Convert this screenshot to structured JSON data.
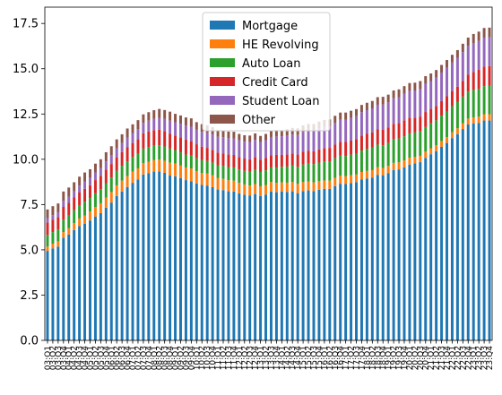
{
  "chart_data": {
    "type": "bar",
    "stacked": true,
    "title": "",
    "xlabel": "",
    "ylabel": "",
    "ylim": [
      0,
      18.4
    ],
    "yticks": [
      0.0,
      2.5,
      5.0,
      7.5,
      10.0,
      12.5,
      15.0,
      17.5
    ],
    "ytick_labels": [
      "0.0",
      "2.5",
      "5.0",
      "7.5",
      "10.0",
      "12.5",
      "15.0",
      "17.5"
    ],
    "legend_position": "upper center",
    "grid": false,
    "categories": [
      "03:Q1",
      "03:Q2",
      "03:Q3",
      "03:Q4",
      "04:Q1",
      "04:Q2",
      "04:Q3",
      "04:Q4",
      "05:Q1",
      "05:Q2",
      "05:Q3",
      "05:Q4",
      "06:Q1",
      "06:Q2",
      "06:Q3",
      "06:Q4",
      "07:Q1",
      "07:Q2",
      "07:Q3",
      "07:Q4",
      "08:Q1",
      "08:Q2",
      "08:Q3",
      "08:Q4",
      "09:Q1",
      "09:Q2",
      "09:Q3",
      "09:Q4",
      "10:Q1",
      "10:Q2",
      "10:Q3",
      "10:Q4",
      "11:Q1",
      "11:Q2",
      "11:Q3",
      "11:Q4",
      "12:Q1",
      "12:Q2",
      "12:Q3",
      "12:Q4",
      "13:Q1",
      "13:Q2",
      "13:Q3",
      "13:Q4",
      "14:Q1",
      "14:Q2",
      "14:Q3",
      "14:Q4",
      "15:Q1",
      "15:Q2",
      "15:Q3",
      "15:Q4",
      "16:Q1",
      "16:Q2",
      "16:Q3",
      "16:Q4",
      "17:Q1",
      "17:Q2",
      "17:Q3",
      "17:Q4",
      "18:Q1",
      "18:Q2",
      "18:Q3",
      "18:Q4",
      "19:Q1",
      "19:Q2",
      "19:Q3",
      "19:Q4",
      "20:Q1",
      "20:Q2",
      "20:Q3",
      "20:Q4",
      "21:Q1",
      "21:Q2",
      "21:Q3",
      "21:Q4",
      "22:Q1",
      "22:Q2",
      "22:Q3",
      "22:Q4",
      "23:Q1",
      "23:Q2",
      "23:Q3",
      "23:Q4"
    ],
    "series": [
      {
        "name": "Mortgage",
        "color": "#1f77b4",
        "values": [
          4.94,
          5.08,
          5.18,
          5.66,
          5.84,
          6.09,
          6.31,
          6.43,
          6.62,
          6.84,
          7.03,
          7.33,
          7.61,
          7.97,
          8.22,
          8.47,
          8.7,
          8.89,
          9.16,
          9.24,
          9.32,
          9.33,
          9.25,
          9.1,
          9.06,
          8.96,
          8.85,
          8.79,
          8.67,
          8.58,
          8.55,
          8.46,
          8.33,
          8.3,
          8.23,
          8.22,
          8.12,
          8.04,
          7.99,
          8.08,
          7.97,
          8.05,
          8.21,
          8.18,
          8.21,
          8.2,
          8.23,
          8.13,
          8.24,
          8.28,
          8.24,
          8.32,
          8.37,
          8.37,
          8.52,
          8.65,
          8.63,
          8.69,
          8.74,
          8.88,
          8.94,
          8.98,
          9.14,
          9.12,
          9.24,
          9.41,
          9.44,
          9.56,
          9.71,
          9.78,
          9.84,
          10.08,
          10.28,
          10.45,
          10.69,
          10.9,
          11.17,
          11.39,
          11.67,
          11.92,
          11.97,
          12.01,
          12.14,
          12.14
        ]
      },
      {
        "name": "HE Revolving",
        "color": "#ff7f0e",
        "values": [
          0.24,
          0.26,
          0.29,
          0.32,
          0.35,
          0.38,
          0.42,
          0.46,
          0.49,
          0.52,
          0.54,
          0.56,
          0.58,
          0.59,
          0.6,
          0.6,
          0.61,
          0.61,
          0.62,
          0.63,
          0.63,
          0.65,
          0.67,
          0.71,
          0.71,
          0.71,
          0.7,
          0.7,
          0.68,
          0.67,
          0.66,
          0.65,
          0.63,
          0.62,
          0.61,
          0.6,
          0.58,
          0.57,
          0.56,
          0.55,
          0.54,
          0.53,
          0.53,
          0.52,
          0.51,
          0.51,
          0.51,
          0.51,
          0.5,
          0.49,
          0.48,
          0.47,
          0.46,
          0.45,
          0.45,
          0.45,
          0.43,
          0.43,
          0.42,
          0.42,
          0.42,
          0.42,
          0.42,
          0.4,
          0.39,
          0.39,
          0.39,
          0.38,
          0.38,
          0.36,
          0.35,
          0.34,
          0.33,
          0.32,
          0.32,
          0.32,
          0.32,
          0.32,
          0.32,
          0.33,
          0.34,
          0.34,
          0.35,
          0.35
        ]
      },
      {
        "name": "Auto Loan",
        "color": "#2ca02c",
        "values": [
          0.64,
          0.64,
          0.65,
          0.68,
          0.7,
          0.72,
          0.74,
          0.76,
          0.75,
          0.76,
          0.78,
          0.79,
          0.8,
          0.81,
          0.82,
          0.82,
          0.81,
          0.81,
          0.81,
          0.81,
          0.8,
          0.79,
          0.79,
          0.78,
          0.74,
          0.72,
          0.71,
          0.71,
          0.7,
          0.7,
          0.7,
          0.71,
          0.71,
          0.72,
          0.73,
          0.73,
          0.74,
          0.75,
          0.77,
          0.78,
          0.79,
          0.81,
          0.81,
          0.84,
          0.86,
          0.89,
          0.91,
          0.94,
          0.97,
          0.99,
          1.01,
          1.03,
          1.06,
          1.07,
          1.09,
          1.11,
          1.12,
          1.14,
          1.15,
          1.18,
          1.22,
          1.24,
          1.25,
          1.25,
          1.27,
          1.31,
          1.32,
          1.33,
          1.34,
          1.34,
          1.35,
          1.36,
          1.37,
          1.38,
          1.4,
          1.42,
          1.44,
          1.45,
          1.47,
          1.49,
          1.52,
          1.53,
          1.55,
          1.58
        ]
      },
      {
        "name": "Credit Card",
        "color": "#d62728",
        "values": [
          0.69,
          0.69,
          0.69,
          0.71,
          0.7,
          0.7,
          0.71,
          0.72,
          0.71,
          0.73,
          0.73,
          0.75,
          0.75,
          0.74,
          0.76,
          0.77,
          0.78,
          0.8,
          0.84,
          0.85,
          0.86,
          0.87,
          0.85,
          0.83,
          0.8,
          0.81,
          0.83,
          0.8,
          0.78,
          0.75,
          0.72,
          0.7,
          0.69,
          0.69,
          0.7,
          0.69,
          0.68,
          0.68,
          0.68,
          0.7,
          0.67,
          0.68,
          0.68,
          0.7,
          0.66,
          0.67,
          0.67,
          0.68,
          0.7,
          0.7,
          0.71,
          0.73,
          0.73,
          0.74,
          0.75,
          0.75,
          0.78,
          0.77,
          0.8,
          0.83,
          0.82,
          0.84,
          0.84,
          0.87,
          0.85,
          0.85,
          0.85,
          0.88,
          0.87,
          0.82,
          0.82,
          0.83,
          0.8,
          0.79,
          0.8,
          0.84,
          0.84,
          0.85,
          0.87,
          0.93,
          0.99,
          1.06,
          1.08,
          1.08
        ]
      },
      {
        "name": "Student Loan",
        "color": "#9467bd",
        "values": [
          0.24,
          0.25,
          0.26,
          0.33,
          0.34,
          0.35,
          0.37,
          0.39,
          0.4,
          0.42,
          0.43,
          0.45,
          0.48,
          0.49,
          0.5,
          0.54,
          0.55,
          0.56,
          0.58,
          0.6,
          0.62,
          0.65,
          0.67,
          0.71,
          0.73,
          0.76,
          0.77,
          0.8,
          0.8,
          0.81,
          0.84,
          0.86,
          0.88,
          0.89,
          0.89,
          0.91,
          0.92,
          0.93,
          0.95,
          0.96,
          0.97,
          0.98,
          1.0,
          1.02,
          1.03,
          1.04,
          1.05,
          1.08,
          1.1,
          1.12,
          1.13,
          1.15,
          1.17,
          1.18,
          1.19,
          1.22,
          1.23,
          1.25,
          1.27,
          1.29,
          1.31,
          1.33,
          1.36,
          1.38,
          1.39,
          1.41,
          1.43,
          1.46,
          1.48,
          1.5,
          1.52,
          1.55,
          1.54,
          1.57,
          1.58,
          1.57,
          1.57,
          1.58,
          1.59,
          1.59,
          1.6,
          1.6,
          1.6,
          1.58
        ]
      },
      {
        "name": "Other",
        "color": "#8c564b",
        "values": [
          0.48,
          0.49,
          0.49,
          0.52,
          0.51,
          0.49,
          0.49,
          0.51,
          0.48,
          0.49,
          0.49,
          0.51,
          0.5,
          0.5,
          0.48,
          0.5,
          0.48,
          0.49,
          0.47,
          0.47,
          0.48,
          0.49,
          0.49,
          0.5,
          0.47,
          0.46,
          0.45,
          0.46,
          0.42,
          0.43,
          0.41,
          0.39,
          0.38,
          0.38,
          0.37,
          0.37,
          0.36,
          0.36,
          0.36,
          0.36,
          0.35,
          0.35,
          0.35,
          0.36,
          0.35,
          0.36,
          0.36,
          0.37,
          0.36,
          0.37,
          0.38,
          0.38,
          0.38,
          0.39,
          0.4,
          0.4,
          0.39,
          0.4,
          0.39,
          0.4,
          0.41,
          0.41,
          0.42,
          0.43,
          0.43,
          0.43,
          0.43,
          0.43,
          0.43,
          0.43,
          0.44,
          0.43,
          0.42,
          0.42,
          0.42,
          0.43,
          0.43,
          0.44,
          0.46,
          0.46,
          0.5,
          0.51,
          0.53,
          0.54
        ]
      }
    ]
  }
}
